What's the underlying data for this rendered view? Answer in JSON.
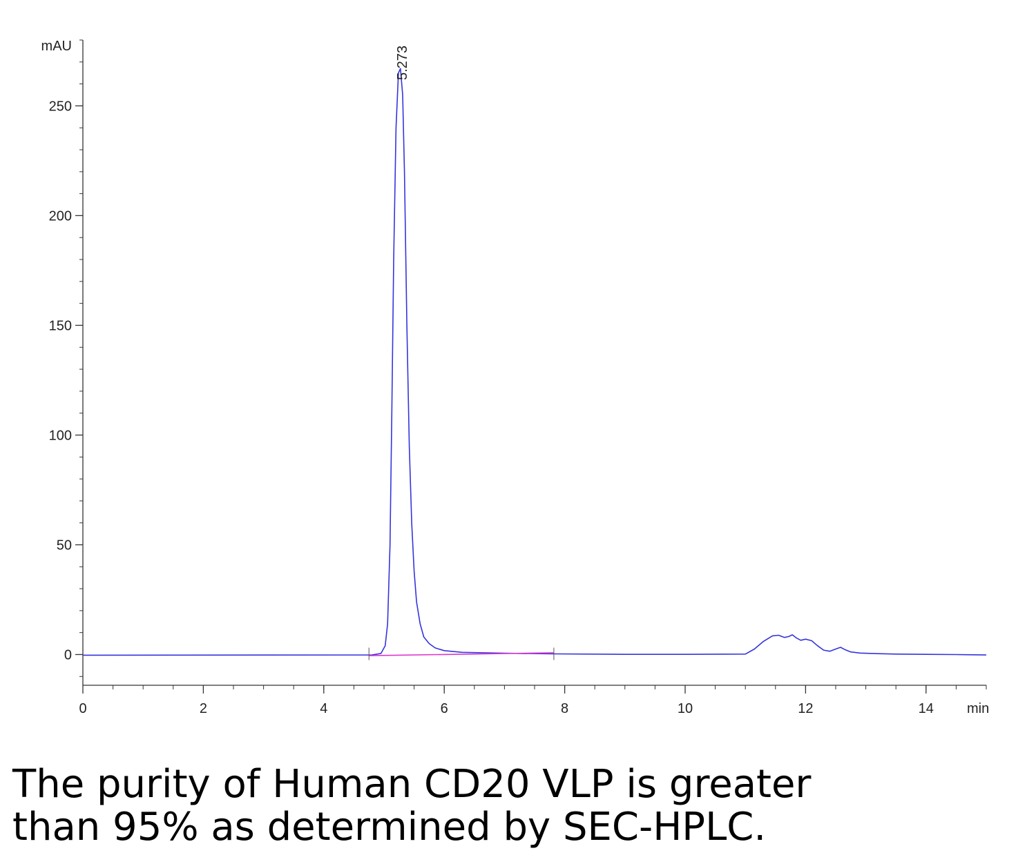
{
  "chart_data": {
    "type": "line",
    "ylabel": "mAU",
    "xlabel": "min",
    "xlim": [
      0,
      15
    ],
    "ylim": [
      -14,
      280
    ],
    "x_ticks": [
      "0",
      "2",
      "4",
      "6",
      "8",
      "10",
      "12",
      "14"
    ],
    "y_ticks": [
      "0",
      "50",
      "100",
      "150",
      "200",
      "250"
    ],
    "grid": false,
    "legend": "none",
    "peak_annotations": [
      {
        "x": 5.273,
        "label": "5.273"
      }
    ],
    "integration_markers": [
      4.75,
      7.82
    ],
    "series": [
      {
        "color": "#3333dd",
        "x": [
          0,
          4.8,
          4.95,
          5.02,
          5.06,
          5.1,
          5.13,
          5.16,
          5.2,
          5.24,
          5.273,
          5.31,
          5.34,
          5.38,
          5.42,
          5.46,
          5.5,
          5.54,
          5.6,
          5.66,
          5.75,
          5.85,
          6.0,
          6.3,
          7.0,
          7.8,
          9.0,
          10.0,
          11.0,
          11.15,
          11.3,
          11.45,
          11.55,
          11.65,
          11.72,
          11.78,
          11.85,
          11.92,
          12.0,
          12.1,
          12.2,
          12.3,
          12.4,
          12.5,
          12.58,
          12.65,
          12.75,
          12.9,
          13.2,
          13.5,
          14.0,
          14.5,
          15.0
        ],
        "y": [
          -0.3,
          -0.2,
          0.5,
          4,
          14,
          50,
          110,
          180,
          240,
          265,
          267,
          255,
          220,
          150,
          95,
          60,
          38,
          24,
          14,
          8,
          5,
          3,
          1.8,
          1,
          0.6,
          0.3,
          0.1,
          0.1,
          0.2,
          2.5,
          6,
          8.5,
          8.8,
          7.8,
          8.2,
          9,
          7.5,
          6.5,
          7,
          6.3,
          4,
          2,
          1.5,
          2.5,
          3.3,
          2.3,
          1.2,
          0.7,
          0.4,
          0.2,
          0.1,
          0,
          -0.2
        ]
      },
      {
        "color": "#dd33cc",
        "x": [
          4.75,
          7.82
        ],
        "y": [
          -0.5,
          0.8
        ]
      }
    ]
  },
  "caption": {
    "line1": "The purity of Human CD20 VLP is greater",
    "line2": "than 95% as determined by SEC-HPLC."
  }
}
